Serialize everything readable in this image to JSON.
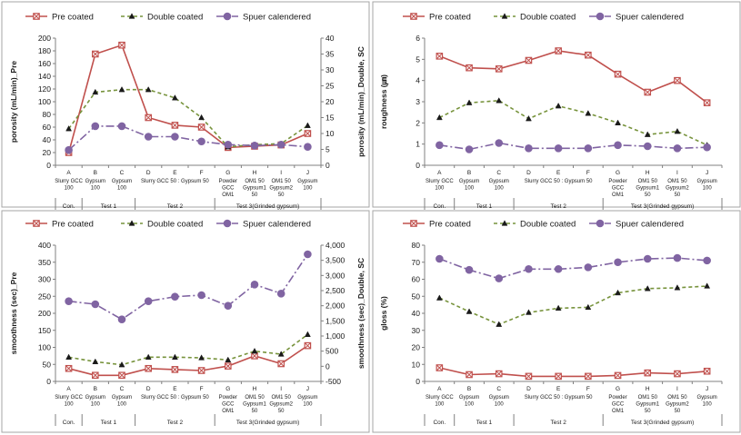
{
  "x_categories": [
    {
      "letter": "A",
      "label": [
        "Slurry GCC",
        "100"
      ]
    },
    {
      "letter": "B",
      "label": [
        "Gypsum",
        "100"
      ]
    },
    {
      "letter": "C",
      "label": [
        "Gypsum",
        "100"
      ]
    },
    {
      "letter": "D",
      "label": [
        "Slurry GCC 50 : Gypsum 50"
      ]
    },
    {
      "letter": "E",
      "label": []
    },
    {
      "letter": "F",
      "label": []
    },
    {
      "letter": "G",
      "label": [
        "Powder",
        "GCC",
        "OM1"
      ]
    },
    {
      "letter": "H",
      "label": [
        "OM1 50",
        "Gypsum1",
        "50"
      ]
    },
    {
      "letter": "I",
      "label": [
        "OM1 50",
        "Gypsum2",
        "50"
      ]
    },
    {
      "letter": "J",
      "label": [
        "Gypsum",
        "100"
      ]
    }
  ],
  "x_groups": [
    {
      "label": "Con.",
      "from": 0,
      "to": 0
    },
    {
      "label": "Test 1",
      "from": 1,
      "to": 2
    },
    {
      "label": "Test 2",
      "from": 3,
      "to": 5
    },
    {
      "label": "Test 3(Grinded gypsum)",
      "from": 6,
      "to": 9
    }
  ],
  "series_style": [
    {
      "name": "Pre coated",
      "color": "#c0504d",
      "dash": "",
      "marker": "square-x"
    },
    {
      "name": "Double coated",
      "color": "#77933c",
      "dash": "4,3",
      "marker": "triangle"
    },
    {
      "name": "Spuer calendered",
      "color": "#8064a2",
      "dash": "9,3,2,3",
      "marker": "circle"
    }
  ],
  "marker_colors": {
    "triangle": "#1a1a1a"
  },
  "chart_data": [
    {
      "type": "line",
      "title": "",
      "xlabel": "",
      "ylabel": "porosity (mL/min)_Pre",
      "ylim": [
        0,
        200
      ],
      "yticks": [
        "0",
        "20",
        "40",
        "60",
        "80",
        "100",
        "120",
        "140",
        "160",
        "180",
        "200"
      ],
      "y2label": "porosity (mL/min)_Double, SC",
      "y2lim": [
        0,
        40
      ],
      "y2ticks": [
        "0",
        "5",
        "10",
        "15",
        "20",
        "25",
        "30",
        "35",
        "40"
      ],
      "series": [
        {
          "name": "Pre coated",
          "axis": "left",
          "values": [
            20,
            175,
            189,
            75,
            63,
            60,
            28,
            30,
            32,
            50
          ]
        },
        {
          "name": "Double coated",
          "axis": "right",
          "values": [
            11.5,
            23,
            23.8,
            23.8,
            21.2,
            15,
            5.8,
            6.5,
            6.8,
            12.5
          ]
        },
        {
          "name": "Spuer calendered",
          "axis": "right",
          "values": [
            4.8,
            12.3,
            12.3,
            9,
            9,
            7.5,
            6.5,
            6.2,
            6.5,
            5.8
          ]
        }
      ]
    },
    {
      "type": "line",
      "title": "",
      "xlabel": "",
      "ylabel": "roughness (㎛)",
      "ylim": [
        0,
        6
      ],
      "yticks": [
        "0",
        "1",
        "2",
        "3",
        "4",
        "5",
        "6"
      ],
      "series": [
        {
          "name": "Pre coated",
          "axis": "left",
          "values": [
            5.15,
            4.6,
            4.55,
            4.95,
            5.4,
            5.2,
            4.3,
            3.45,
            4.0,
            2.95
          ]
        },
        {
          "name": "Double coated",
          "axis": "left",
          "values": [
            2.25,
            2.95,
            3.05,
            2.2,
            2.8,
            2.45,
            2.0,
            1.45,
            1.6,
            0.95
          ]
        },
        {
          "name": "Spuer calendered",
          "axis": "left",
          "values": [
            0.95,
            0.75,
            1.05,
            0.8,
            0.8,
            0.8,
            0.95,
            0.9,
            0.8,
            0.85
          ]
        }
      ]
    },
    {
      "type": "line",
      "title": "",
      "xlabel": "",
      "ylabel": "smoothness (sec)_Pre",
      "ylim": [
        0,
        400
      ],
      "yticks": [
        "0",
        "50",
        "100",
        "150",
        "200",
        "250",
        "300",
        "350",
        "400"
      ],
      "y2label": "smoothness (sec)_Double, SC",
      "y2lim": [
        -500,
        4000
      ],
      "y2ticks": [
        "-500",
        "0",
        "500",
        "1,000",
        "1,500",
        "2,000",
        "2,500",
        "3,000",
        "3,500",
        "4,000"
      ],
      "series": [
        {
          "name": "Pre coated",
          "axis": "left",
          "values": [
            38,
            18,
            18,
            38,
            35,
            32,
            45,
            75,
            52,
            105
          ]
        },
        {
          "name": "Double coated",
          "axis": "right",
          "values": [
            300,
            150,
            50,
            300,
            300,
            280,
            210,
            500,
            400,
            1050
          ]
        },
        {
          "name": "Spuer calendered",
          "axis": "right",
          "values": [
            2150,
            2050,
            1550,
            2150,
            2300,
            2350,
            2000,
            2700,
            2400,
            3700
          ]
        }
      ]
    },
    {
      "type": "line",
      "title": "",
      "xlabel": "",
      "ylabel": "gloss (%)",
      "ylim": [
        0,
        80
      ],
      "yticks": [
        "0",
        "10",
        "20",
        "30",
        "40",
        "50",
        "60",
        "70",
        "80"
      ],
      "series": [
        {
          "name": "Pre coated",
          "axis": "left",
          "values": [
            8,
            4,
            4.5,
            3,
            3,
            3,
            3.5,
            5,
            4.5,
            6
          ]
        },
        {
          "name": "Double coated",
          "axis": "left",
          "values": [
            49,
            41,
            33.5,
            40.5,
            43,
            43.5,
            52,
            54.5,
            55,
            56
          ]
        },
        {
          "name": "Spuer calendered",
          "axis": "left",
          "values": [
            72,
            65.5,
            60.5,
            66,
            66,
            67,
            70,
            72,
            72.5,
            71
          ]
        }
      ]
    }
  ]
}
